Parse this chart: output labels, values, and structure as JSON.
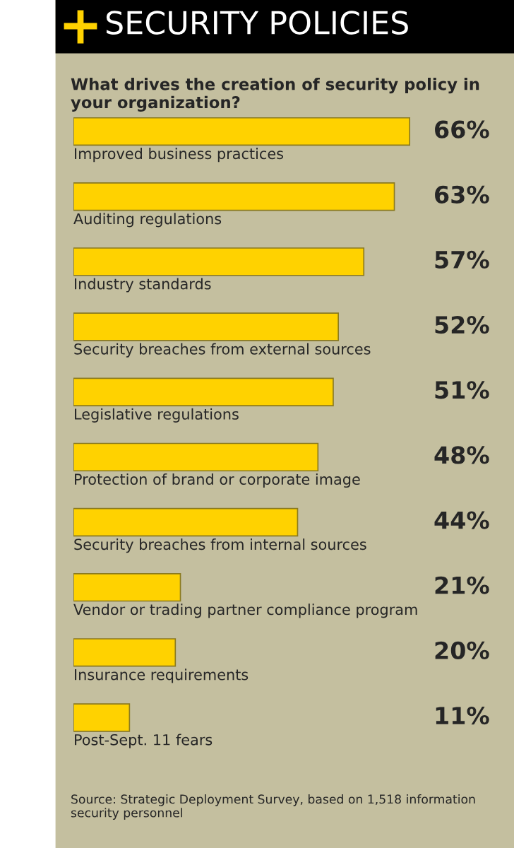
{
  "chart_data": {
    "type": "bar",
    "orientation": "horizontal",
    "title": "SECURITY POLICIES",
    "subtitle": "What drives the creation of security policy in your organization?",
    "categories": [
      "Improved business practices",
      "Auditing regulations",
      "Industry standards",
      "Security breaches from external sources",
      "Legislative regulations",
      "Protection of brand or corporate image",
      "Security breaches from internal sources",
      "Vendor or trading partner compliance program",
      "Insurance requirements",
      "Post-Sept. 11 fears"
    ],
    "values": [
      66,
      63,
      57,
      52,
      51,
      48,
      44,
      21,
      20,
      11
    ],
    "value_labels": [
      "66%",
      "63%",
      "57%",
      "52%",
      "51%",
      "48%",
      "44%",
      "21%",
      "20%",
      "11%"
    ],
    "color": "#ffd200",
    "annotations": [
      "Source: Strategic Deployment Survey, based on 1,518 information security personnel"
    ],
    "tick_labels": false
  }
}
